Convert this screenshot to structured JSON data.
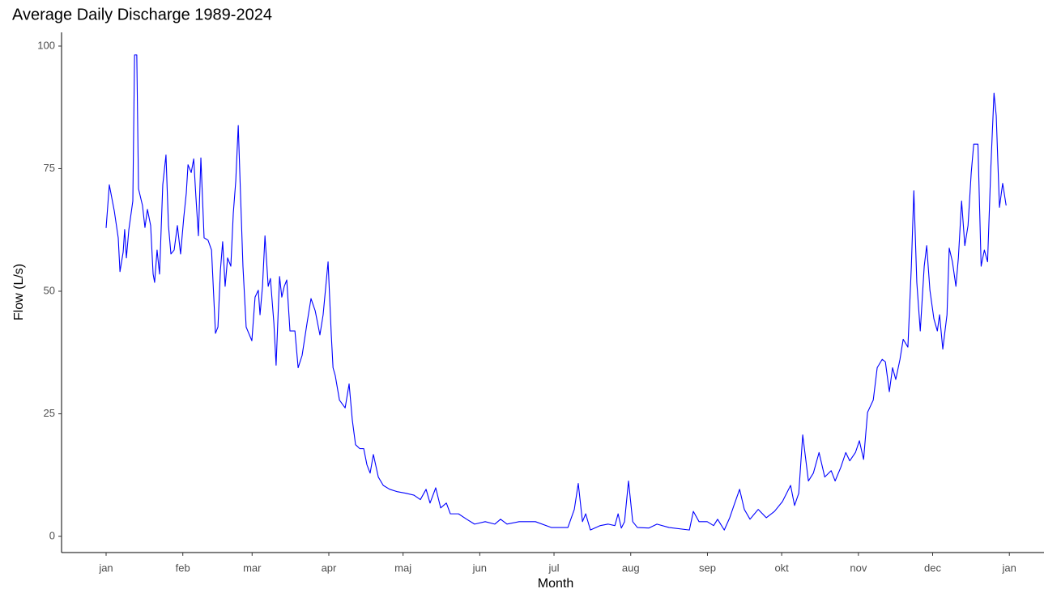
{
  "chart_data": {
    "type": "line",
    "title": "Average Daily Discharge 1989-2024",
    "x_label": "Month",
    "y_label": "Flow (L/s)",
    "xlim": [
      -17,
      380
    ],
    "ylim": [
      -3.3,
      102.8
    ],
    "xticks": [
      {
        "value": 1,
        "label": "jan"
      },
      {
        "value": 32,
        "label": "feb"
      },
      {
        "value": 60,
        "label": "mar"
      },
      {
        "value": 91,
        "label": "apr"
      },
      {
        "value": 121,
        "label": "maj"
      },
      {
        "value": 152,
        "label": "jun"
      },
      {
        "value": 182,
        "label": "jul"
      },
      {
        "value": 213,
        "label": "aug"
      },
      {
        "value": 244,
        "label": "sep"
      },
      {
        "value": 274,
        "label": "okt"
      },
      {
        "value": 305,
        "label": "nov"
      },
      {
        "value": 335,
        "label": "dec"
      },
      {
        "value": 366,
        "label": "jan"
      }
    ],
    "yticks": [
      0,
      25,
      50,
      75,
      100
    ],
    "grid": false,
    "series": [
      {
        "color": "#0000ff",
        "x": [
          1,
          2.3,
          4.3,
          5.9,
          6.6,
          7.9,
          8.5,
          9.2,
          10.2,
          11.8,
          12.5,
          13.4,
          14.1,
          15.7,
          16.7,
          17.7,
          19,
          20,
          20.6,
          21.6,
          22.6,
          23.9,
          25.2,
          26.2,
          27.2,
          28.5,
          29.8,
          31.1,
          32.4,
          33.4,
          34.1,
          35.4,
          36.4,
          37.3,
          38.3,
          39.3,
          40.6,
          42.2,
          43.6,
          45.2,
          46.2,
          47.2,
          48.1,
          49.1,
          50.1,
          51.4,
          52.4,
          53.4,
          54.4,
          55.3,
          56.3,
          57.6,
          59.9,
          61.2,
          62.5,
          63.2,
          64.2,
          65.2,
          66.5,
          67.4,
          68.8,
          69.7,
          71.1,
          72,
          73,
          74,
          75.3,
          77.3,
          78.6,
          80.2,
          82.2,
          83.8,
          85.5,
          87.4,
          88.7,
          90.7,
          92,
          92.7,
          93.6,
          95.3,
          97.6,
          99.2,
          100.5,
          101.8,
          103.5,
          105.1,
          106.4,
          107.7,
          109,
          111,
          113,
          115.6,
          118.8,
          122.1,
          125.4,
          128,
          130.3,
          131.9,
          134.2,
          136.2,
          138.5,
          140.1,
          143.4,
          146.7,
          149.9,
          154.2,
          158.1,
          160.4,
          163,
          167.9,
          174.5,
          181,
          187.6,
          190.2,
          191.8,
          193.5,
          194.8,
          196.7,
          200.7,
          203.9,
          206.6,
          207.9,
          209.2,
          210.5,
          212.1,
          213.8,
          215.7,
          220.3,
          223.6,
          228.5,
          236.7,
          238.3,
          240.6,
          243.9,
          246.5,
          248.1,
          250.8,
          253,
          254.7,
          257,
          258.9,
          261.2,
          264.5,
          267.8,
          271.1,
          274.3,
          277.6,
          279.2,
          280.9,
          282.5,
          284.8,
          286.8,
          289.1,
          291.4,
          294,
          295.6,
          297.9,
          299.9,
          301.5,
          303.8,
          305.4,
          307.1,
          308.7,
          311,
          312.6,
          314.6,
          315.9,
          317.5,
          318.8,
          320.1,
          321.8,
          323.1,
          325,
          326.4,
          327.4,
          328.6,
          330,
          331.6,
          332.6,
          333.9,
          335.5,
          336.9,
          337.8,
          339.1,
          340.8,
          341.7,
          343,
          344.4,
          345.4,
          346.7,
          348,
          349.3,
          350.6,
          351.6,
          353.3,
          354.6,
          355.9,
          357.2,
          358.5,
          359.8,
          360.7,
          362,
          363.3,
          364.7
        ],
        "values": [
          62.9,
          71.7,
          66.4,
          60.9,
          54,
          58,
          62.6,
          56.8,
          62.6,
          68.4,
          98.2,
          98.2,
          70.9,
          67.5,
          63,
          66.7,
          63.4,
          53.5,
          51.8,
          58.4,
          53.5,
          71.7,
          77.8,
          63.4,
          57.6,
          58.4,
          63.4,
          57.6,
          65.1,
          70,
          75.8,
          74.2,
          77,
          69.2,
          61.3,
          77.2,
          60.9,
          60.4,
          58.4,
          41.4,
          42.7,
          54.3,
          60.1,
          51,
          56.8,
          55.1,
          65.9,
          72.5,
          83.8,
          70,
          55.1,
          42.7,
          39.9,
          48.8,
          50.2,
          45.2,
          51,
          61.3,
          51,
          52.6,
          43.5,
          34.9,
          53,
          48.8,
          51,
          52.3,
          41.9,
          41.9,
          34.4,
          36.9,
          43.5,
          48.5,
          46,
          41.1,
          45.2,
          56,
          41.1,
          34.4,
          32.8,
          27.8,
          26.2,
          31.1,
          23.7,
          18.7,
          17.9,
          17.9,
          14.6,
          12.9,
          16.7,
          12.1,
          10.4,
          9.6,
          9.1,
          8.8,
          8.4,
          7.5,
          9.6,
          6.8,
          9.9,
          5.8,
          6.8,
          4.6,
          4.6,
          3.5,
          2.5,
          3,
          2.5,
          3.5,
          2.5,
          3,
          3,
          1.8,
          1.8,
          5.5,
          10.8,
          3,
          4.6,
          1.3,
          2.2,
          2.5,
          2.2,
          4.6,
          1.7,
          3,
          11.3,
          3,
          1.8,
          1.7,
          2.5,
          1.8,
          1.3,
          5.1,
          3,
          3,
          2.2,
          3.5,
          1.3,
          3.8,
          6.3,
          9.6,
          5.5,
          3.5,
          5.5,
          3.8,
          5.1,
          7.1,
          10.4,
          6.3,
          8.8,
          20.7,
          11.3,
          12.9,
          17.1,
          12.1,
          13.4,
          11.3,
          14.1,
          17.1,
          15.4,
          17.1,
          19.5,
          15.7,
          25.3,
          27.8,
          34.4,
          36.1,
          35.6,
          29.5,
          34.4,
          32,
          36.1,
          40.2,
          38.6,
          55.1,
          70.5,
          51.8,
          41.9,
          55.1,
          59.3,
          50.2,
          44.4,
          41.9,
          45.2,
          38.2,
          45.2,
          58.8,
          56,
          51,
          56.8,
          68.4,
          59.3,
          63.4,
          74.2,
          80,
          80,
          55.1,
          58.4,
          56,
          75,
          90.4,
          85.8,
          67.1,
          72,
          67.5
        ]
      }
    ]
  }
}
